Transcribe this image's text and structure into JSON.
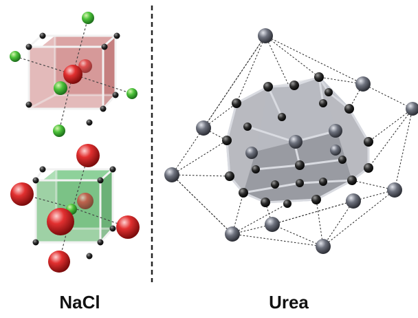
{
  "labels": {
    "left": "NaCl",
    "right": "Urea"
  },
  "colors": {
    "sodium": "#2fa62f",
    "chlorine": "#d42222",
    "cube_na": "#b74a4a",
    "cube_cl": "#2e8b3a",
    "corner": "#222222",
    "urea_atom": "#5c5f6b",
    "cage_face": "#8a8d96",
    "divider": "#222222"
  },
  "figure": {
    "divider": "dashed-vertical",
    "panels": [
      "left",
      "right"
    ]
  }
}
